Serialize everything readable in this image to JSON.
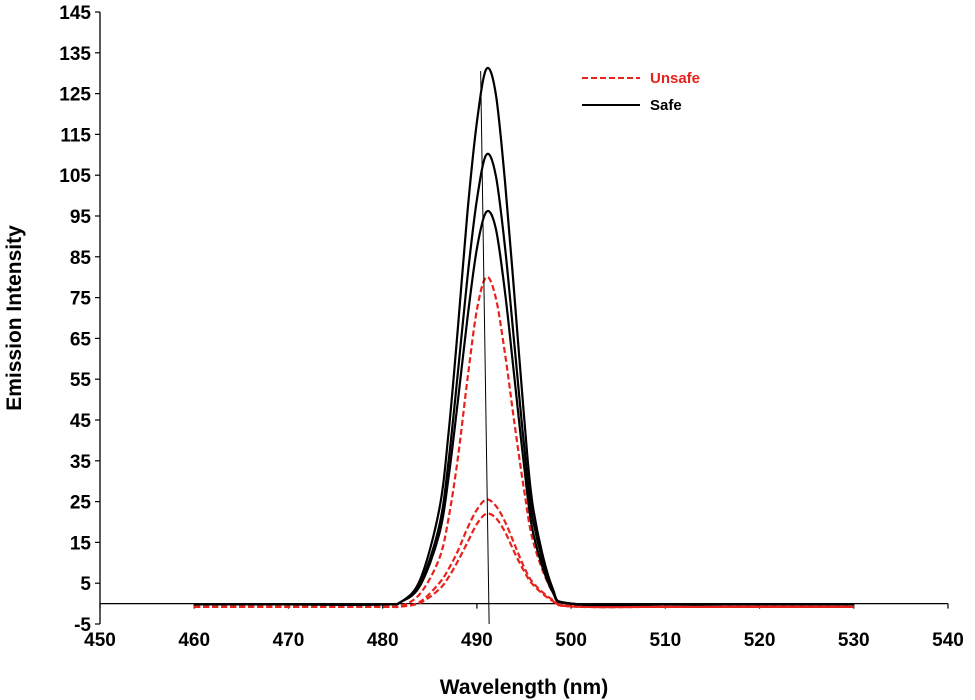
{
  "chart_data": {
    "type": "line",
    "title": "",
    "xlabel": "Wavelength (nm)",
    "ylabel": "Emission Intensity",
    "xlim": [
      450,
      540
    ],
    "ylim": [
      -5,
      145
    ],
    "x_ticks": [
      450,
      460,
      470,
      480,
      490,
      500,
      510,
      520,
      530,
      540
    ],
    "y_ticks": [
      -5,
      5,
      15,
      25,
      35,
      45,
      55,
      65,
      75,
      85,
      95,
      105,
      115,
      125,
      135,
      145
    ],
    "grid": false,
    "legend_position": "top-right",
    "x": [
      460,
      470,
      480,
      482,
      484,
      486,
      487,
      488,
      489,
      490,
      491,
      492,
      493,
      494,
      495,
      496,
      498,
      500,
      510,
      520,
      530
    ],
    "series": [
      {
        "name": "Unsafe",
        "style": "dashed",
        "color": "#e8221b",
        "values": [
          -0.8,
          -0.8,
          -0.8,
          -0.5,
          2.5,
          11,
          21,
          36,
          55,
          72,
          80,
          75,
          61,
          44,
          28,
          15,
          3,
          -0.5,
          -0.8,
          -0.8,
          -0.8
        ]
      },
      {
        "style": "dashed",
        "color": "#e8221b",
        "values": [
          -0.8,
          -0.8,
          -0.8,
          -0.7,
          0.5,
          5,
          8.5,
          13,
          18.5,
          23,
          25.5,
          24,
          20,
          14.5,
          9,
          5,
          1,
          -0.7,
          -0.8,
          -0.8,
          -0.8
        ]
      },
      {
        "style": "dashed",
        "color": "#e8221b",
        "values": [
          -0.8,
          -0.8,
          -0.8,
          -0.7,
          0.2,
          3.5,
          6.5,
          10.5,
          15,
          19.5,
          22,
          21,
          17.5,
          12.5,
          8,
          4.5,
          0.7,
          -0.7,
          -0.8,
          -0.8,
          -0.8
        ]
      },
      {
        "name": "Safe",
        "style": "solid",
        "color": "#000000",
        "values": [
          -0.2,
          -0.2,
          -0.2,
          0.5,
          6,
          23,
          42,
          68,
          96,
          118,
          131,
          125,
          103,
          75,
          46,
          23,
          4,
          0,
          -0.2,
          -0.2,
          -0.2
        ]
      },
      {
        "style": "solid",
        "color": "#000000",
        "values": [
          -0.2,
          -0.2,
          -0.2,
          0.5,
          5,
          19,
          35,
          57,
          80,
          99,
          110,
          105,
          87,
          63,
          39,
          20,
          3.5,
          0,
          -0.2,
          -0.2,
          -0.2
        ]
      },
      {
        "style": "solid",
        "color": "#000000",
        "values": [
          -0.2,
          -0.2,
          -0.2,
          0.5,
          4.5,
          17,
          31,
          50,
          70,
          87,
          96,
          92,
          76,
          55,
          34,
          17,
          3,
          0,
          -0.2,
          -0.2,
          -0.2
        ]
      }
    ],
    "reference_line": {
      "x": 491,
      "color": "#000000"
    }
  }
}
